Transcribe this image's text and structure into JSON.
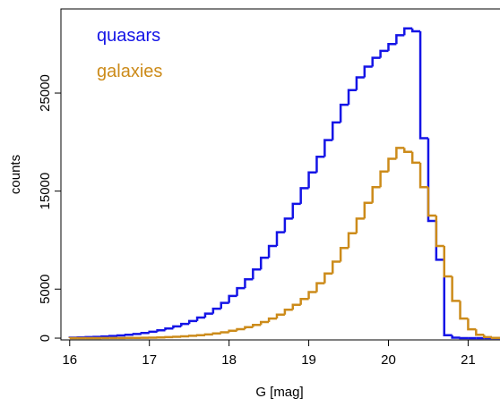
{
  "chart_data": {
    "type": "histogram",
    "xlabel": "G [mag]",
    "ylabel": "counts",
    "bins": [
      16.0,
      16.1,
      16.2,
      16.3,
      16.4,
      16.5,
      16.6,
      16.7,
      16.8,
      16.9,
      17.0,
      17.1,
      17.2,
      17.3,
      17.4,
      17.5,
      17.6,
      17.7,
      17.8,
      17.9,
      18.0,
      18.1,
      18.2,
      18.3,
      18.4,
      18.5,
      18.6,
      18.7,
      18.8,
      18.9,
      19.0,
      19.1,
      19.2,
      19.3,
      19.4,
      19.5,
      19.6,
      19.7,
      19.8,
      19.9,
      20.0,
      20.1,
      20.2,
      20.3,
      20.4,
      20.5,
      20.6,
      20.7,
      20.8,
      20.9,
      21.0,
      21.1,
      21.2,
      21.3,
      21.4
    ],
    "series": [
      {
        "name": "quasars",
        "color": "#1414e6",
        "values": [
          50,
          70,
          100,
          130,
          170,
          220,
          280,
          350,
          430,
          530,
          650,
          800,
          980,
          1200,
          1450,
          1750,
          2100,
          2500,
          3000,
          3600,
          4300,
          5100,
          6000,
          7000,
          8200,
          9400,
          10800,
          12200,
          13700,
          15300,
          16900,
          18500,
          20200,
          22000,
          23800,
          25300,
          26600,
          27700,
          28600,
          29300,
          30000,
          30900,
          31600,
          31300,
          20400,
          11950,
          8000,
          300,
          50,
          0,
          0,
          0,
          0,
          0
        ]
      },
      {
        "name": "galaxies",
        "color": "#cc8b1a",
        "values": [
          2,
          3,
          5,
          7,
          10,
          14,
          18,
          24,
          30,
          40,
          50,
          70,
          100,
          140,
          180,
          240,
          300,
          380,
          480,
          600,
          750,
          920,
          1120,
          1350,
          1650,
          2000,
          2400,
          2900,
          3400,
          4000,
          4700,
          5600,
          6600,
          7800,
          9200,
          10700,
          12200,
          13800,
          15400,
          17000,
          18300,
          19400,
          19000,
          17900,
          15400,
          12500,
          9400,
          6300,
          3800,
          2000,
          900,
          350,
          100,
          20
        ]
      }
    ],
    "xlim": [
      15.89,
      21.4
    ],
    "ylim": [
      -180,
      33580
    ],
    "xticks": [
      16,
      17,
      18,
      19,
      20,
      21
    ],
    "yticks": [
      0,
      5000,
      15000,
      25000
    ]
  }
}
